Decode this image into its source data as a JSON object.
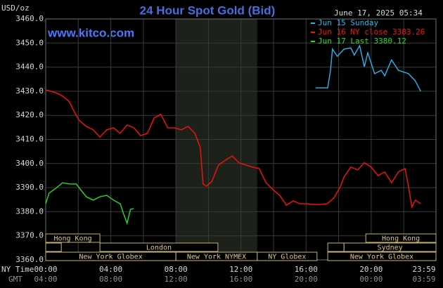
{
  "chart_data": {
    "type": "line",
    "title": "24 Hour Spot Gold (Bid)",
    "y_unit": "USD/oz",
    "website": "www.kitco.com",
    "timestamp": "June 17, 2025 05:34",
    "x_axis_label": "NY Time",
    "x2_axis_label": "GMT",
    "xlim": [
      0,
      23.98
    ],
    "xticks": [
      {
        "value": 0,
        "label": "00:00"
      },
      {
        "value": 4,
        "label": "04:00"
      },
      {
        "value": 8,
        "label": "08:00"
      },
      {
        "value": 12,
        "label": "12:00"
      },
      {
        "value": 16,
        "label": "16:00"
      },
      {
        "value": 20,
        "label": "20:00"
      },
      {
        "value": 23.98,
        "label": "23:59"
      }
    ],
    "gmt_labels": [
      "04:00",
      "08:00",
      "12:00",
      "16:00",
      "20:00",
      "00:00",
      "03:59"
    ],
    "xgrid": [
      2,
      4,
      6,
      8,
      10,
      12,
      14,
      16,
      18,
      20,
      22
    ],
    "ylim": [
      3360,
      3460
    ],
    "yticks": [
      {
        "value": 3360,
        "label": "3360.0"
      },
      {
        "value": 3370,
        "label": "3370.0"
      },
      {
        "value": 3380,
        "label": "3380.0"
      },
      {
        "value": 3390,
        "label": "3390.0"
      },
      {
        "value": 3400,
        "label": "3400.0"
      },
      {
        "value": 3410,
        "label": "3410.0"
      },
      {
        "value": 3420,
        "label": "3420.0"
      },
      {
        "value": 3430,
        "label": "3430.0"
      },
      {
        "value": 3440,
        "label": "3440.0"
      },
      {
        "value": 3450,
        "label": "3450.0"
      },
      {
        "value": 3460,
        "label": "3460.0"
      }
    ],
    "grid": true,
    "shade": [
      8,
      13
    ],
    "series": [
      {
        "name": "Jun 15 Sunday",
        "color": "#22b8f0",
        "x": [
          16.58,
          17.33,
          17.5,
          17.62,
          17.92,
          18.33,
          18.75,
          18.96,
          19.29,
          19.58,
          19.79,
          20.21,
          20.62,
          20.83,
          21.25,
          21.67,
          22.29,
          22.71,
          23.04
        ],
        "values": [
          3431.4,
          3431.4,
          3438.7,
          3447.5,
          3444.5,
          3447.5,
          3448,
          3445,
          3448.9,
          3440.2,
          3446,
          3437.3,
          3438.7,
          3436.4,
          3443,
          3438.7,
          3437.3,
          3434.3,
          3430
        ]
      },
      {
        "name": "Jun 16 NY close 3383.26",
        "color": "#ff1010",
        "x": [
          0,
          0.62,
          1.04,
          1.46,
          1.79,
          2.08,
          2.5,
          2.92,
          3.33,
          3.75,
          4.17,
          4.58,
          5,
          5.42,
          5.83,
          6.25,
          6.67,
          7.08,
          7.5,
          7.92,
          8.33,
          8.75,
          9.17,
          9.5,
          9.67,
          9.88,
          10.21,
          10.62,
          11.04,
          11.46,
          11.88,
          12.29,
          12.71,
          13.12,
          13.54,
          13.96,
          14.38,
          14.79,
          15.21,
          15.62,
          16.04,
          16.46,
          16.88,
          17.29,
          17.71,
          18.12,
          18.33,
          18.75,
          19.17,
          19.58,
          20,
          20.42,
          20.83,
          21.25,
          21.67,
          22.08,
          22.29,
          22.5,
          22.71,
          23.04
        ],
        "values": [
          3430.6,
          3429.4,
          3428,
          3425.6,
          3421,
          3417.7,
          3415.4,
          3414,
          3411,
          3414,
          3414.8,
          3412.5,
          3416,
          3414.8,
          3411.6,
          3412.5,
          3419,
          3420.4,
          3414.8,
          3414.8,
          3414,
          3415.4,
          3412.5,
          3406.6,
          3391.5,
          3390.6,
          3392.6,
          3399.4,
          3401.4,
          3403.1,
          3400.3,
          3399.4,
          3398.5,
          3397.9,
          3392,
          3389.2,
          3386.8,
          3382.7,
          3384.5,
          3383.3,
          3383.3,
          3383,
          3383,
          3383.3,
          3385.7,
          3390.6,
          3394.4,
          3398.5,
          3397.4,
          3400.3,
          3398.5,
          3395,
          3396.5,
          3392,
          3396.5,
          3397.9,
          3390.6,
          3381.9,
          3384.8,
          3383.3
        ]
      },
      {
        "name": "Jun 17 Last 3380.12",
        "color": "#22e022",
        "x": [
          0,
          0.21,
          0.62,
          1.04,
          1.46,
          1.88,
          2.21,
          2.5,
          2.92,
          3.33,
          3.75,
          4.17,
          4.58,
          4.79,
          5,
          5.21,
          5.42
        ],
        "values": [
          3383.3,
          3387.7,
          3389.7,
          3392,
          3391.5,
          3391.5,
          3388.6,
          3386.2,
          3384.8,
          3386.2,
          3386.8,
          3384.8,
          3383.3,
          3379,
          3375.2,
          3381,
          3381.3
        ]
      }
    ],
    "sessions": [
      {
        "name": "Hong Kong",
        "row": 1,
        "start": 0,
        "end": 3.33
      },
      {
        "name": "Hong Kong",
        "row": 1,
        "start": 19.67,
        "end": 23.98
      },
      {
        "name": null,
        "row": 2,
        "start": 0,
        "end": 0.96
      },
      {
        "name": "London",
        "row": 2,
        "start": 3.33,
        "end": 10.58
      },
      {
        "name": null,
        "row": 2,
        "start": 17.33,
        "end": 18.33
      },
      {
        "name": "Sydney",
        "row": 2,
        "start": 18.33,
        "end": 23.98
      },
      {
        "name": "New York Globex",
        "row": 3,
        "start": 0,
        "end": 8
      },
      {
        "name": "New York NYMEX",
        "row": 3,
        "start": 8,
        "end": 13
      },
      {
        "name": "NY Globex",
        "row": 3,
        "start": 13,
        "end": 16.67
      },
      {
        "name": "New York Globex",
        "row": 3,
        "start": 17.33,
        "end": 23.98
      }
    ]
  }
}
